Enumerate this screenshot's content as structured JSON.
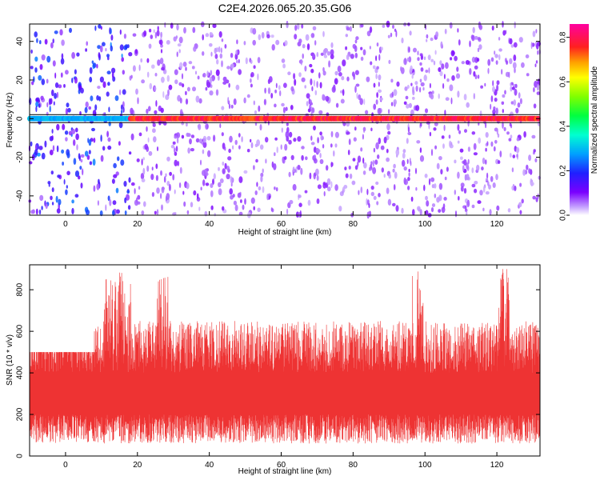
{
  "title": "C2E4.2026.065.20.35.G06",
  "colors": {
    "snr_line": "#ee3333",
    "frame": "#000000",
    "background": "#ffffff"
  },
  "chart_data": [
    {
      "type": "heatmap",
      "xlabel": "Height of straight line (km)",
      "ylabel": "Frequency (Hz)",
      "xlim": [
        -10,
        132
      ],
      "ylim": [
        -50,
        49
      ],
      "xticks": [
        0,
        20,
        40,
        60,
        80,
        100,
        120
      ],
      "yticks": [
        -40,
        -20,
        0,
        20,
        40
      ],
      "colorbar": {
        "label": "Normalized spectral amplitude",
        "range": [
          0.0,
          0.86
        ],
        "ticks": [
          0.0,
          0.2,
          0.4,
          0.6,
          0.8
        ],
        "colormap": "rainbow (purple to red to magenta)"
      },
      "features": {
        "carrier_line_frequency_hz": 0,
        "carrier_amplitude_below_18km": 0.3,
        "carrier_amplitude_above_20km": 0.8,
        "scatter_strong_region_km": [
          -10,
          18
        ]
      }
    },
    {
      "type": "line",
      "xlabel": "Height of straight line (km)",
      "ylabel": "SNR (10 * v/v)",
      "xlim": [
        -10,
        132
      ],
      "ylim": [
        0,
        920
      ],
      "xticks": [
        0,
        20,
        40,
        60,
        80,
        100,
        120
      ],
      "yticks": [
        0,
        200,
        400,
        600,
        800
      ],
      "series": [
        {
          "x_range": [
            -10,
            132
          ],
          "mean": 340,
          "low_band": [
            60,
            200
          ],
          "high_band": [
            400,
            900
          ],
          "peak_heights_km": [
            12,
            15,
            17,
            27,
            98,
            122
          ]
        }
      ]
    }
  ]
}
